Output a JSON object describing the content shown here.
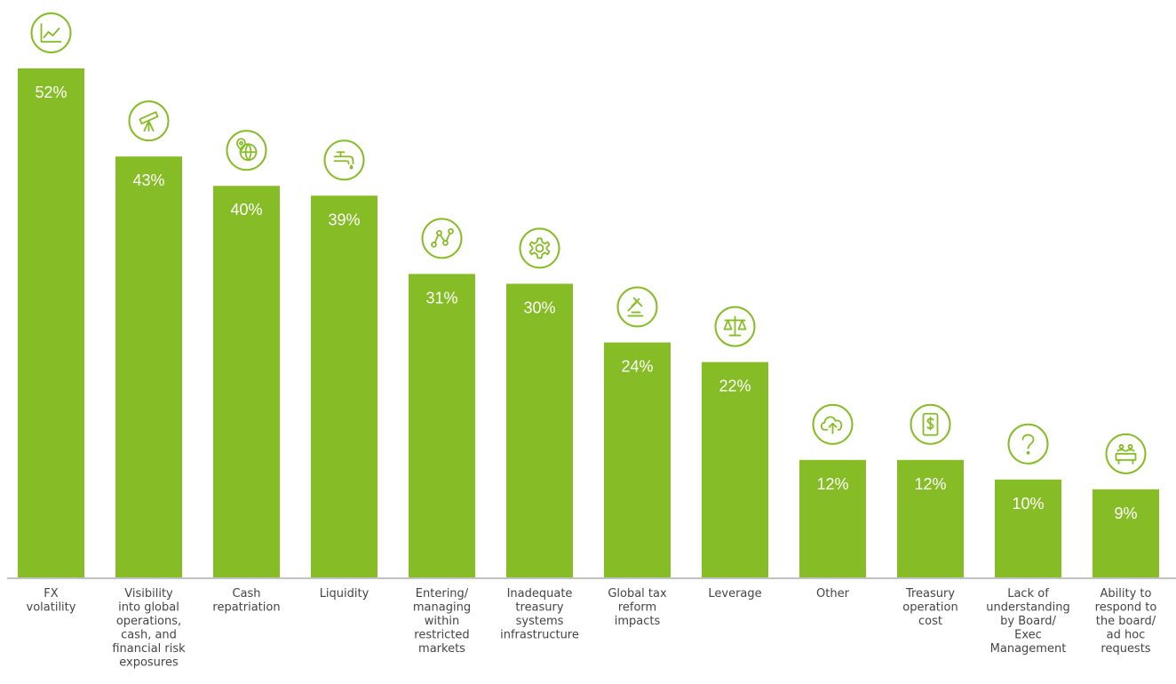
{
  "chart_data": {
    "type": "bar",
    "categories": [
      "FX volatility",
      "Visibility into global operations, cash, and financial risk exposures",
      "Cash repatriation",
      "Liquidity",
      "Entering/ managing within restricted markets",
      "Inadequate treasury systems infrastructure",
      "Global tax reform impacts",
      "Leverage",
      "Other",
      "Treasury operation cost",
      "Lack of understanding by Board/ Exec Management",
      "Ability to respond to the board/ ad hoc requests"
    ],
    "category_lines": [
      [
        "FX",
        "volatility"
      ],
      [
        "Visibility",
        "into global",
        "operations,",
        "cash, and",
        "financial risk",
        "exposures"
      ],
      [
        "Cash",
        "repatriation"
      ],
      [
        "Liquidity"
      ],
      [
        "Entering/",
        "managing",
        "within",
        "restricted",
        "markets"
      ],
      [
        "Inadequate",
        "treasury",
        "systems",
        "infrastructure"
      ],
      [
        "Global tax",
        "reform",
        "impacts"
      ],
      [
        "Leverage"
      ],
      [
        "Other"
      ],
      [
        "Treasury",
        "operation",
        "cost"
      ],
      [
        "Lack of",
        "understanding",
        "by Board/",
        "Exec",
        "Management"
      ],
      [
        "Ability to",
        "respond to",
        "the board/",
        "ad hoc",
        "requests"
      ]
    ],
    "values": [
      52,
      43,
      40,
      39,
      31,
      30,
      24,
      22,
      12,
      12,
      10,
      9
    ],
    "value_labels": [
      "52%",
      "43%",
      "40%",
      "39%",
      "31%",
      "30%",
      "24%",
      "22%",
      "12%",
      "12%",
      "10%",
      "9%"
    ],
    "icons": [
      "line-chart-icon",
      "telescope-icon",
      "location-globe-icon",
      "faucet-icon",
      "network-path-icon",
      "gear-icon",
      "gavel-icon",
      "balance-scale-icon",
      "cloud-upload-icon",
      "dollar-tablet-icon",
      "question-icon",
      "boardroom-icon"
    ],
    "ylim": [
      0,
      52
    ],
    "grid": false,
    "legend": "none",
    "colors": {
      "bar": "#86BC25",
      "label": "#ffffff",
      "axis": "#9E9E9E",
      "text": "#444444"
    }
  }
}
